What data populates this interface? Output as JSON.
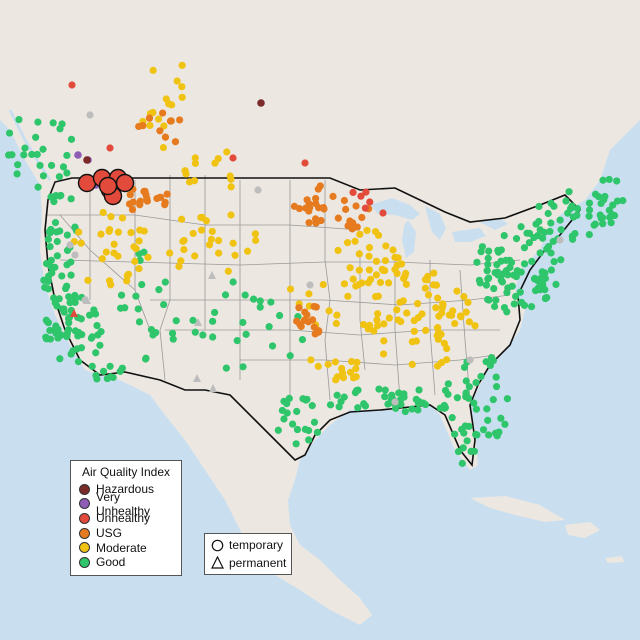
{
  "legend": {
    "title": "Air Quality Index",
    "categories": [
      {
        "label": "Hazardous",
        "color": "#7b2a2a"
      },
      {
        "label": "Very Unhealthy",
        "color": "#8e5bb5"
      },
      {
        "label": "Unhealthy",
        "color": "#e24b3b"
      },
      {
        "label": "USG",
        "color": "#e57a1f"
      },
      {
        "label": "Moderate",
        "color": "#f0c313"
      },
      {
        "label": "Good",
        "color": "#2ec56b"
      }
    ],
    "types": [
      {
        "label": "temporary",
        "icon": "circle-icon"
      },
      {
        "label": "permanent",
        "icon": "triangle-icon"
      }
    ]
  },
  "colors": {
    "water": "#c9dff0",
    "land": "#ece7e1",
    "lake": "#c9dff0",
    "us_border": "#111111",
    "state_lines": "#9a9a9a",
    "no_data": "#bdbdbd"
  }
}
